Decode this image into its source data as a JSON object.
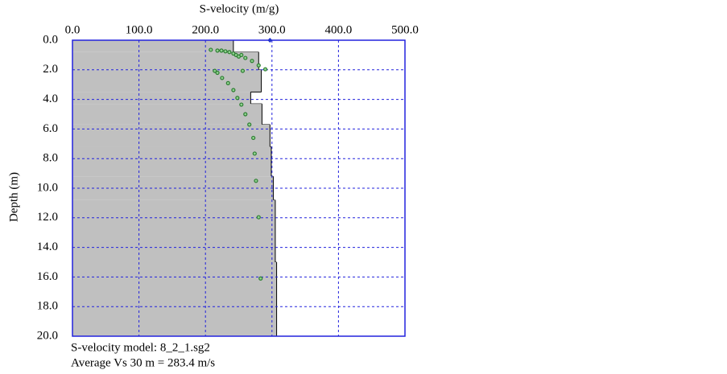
{
  "chart_data": {
    "type": "velocity-profile",
    "title": "S-velocity (m/g)",
    "y_label": "Depth (m)",
    "notes": [
      "S-velocity model: 8_2_1.sg2",
      "Average Vs 30 m = 283.4 m/s"
    ],
    "xlim": [
      0,
      500
    ],
    "xticks": [
      {
        "value": 0,
        "label": "0.0"
      },
      {
        "value": 100,
        "label": "100.0"
      },
      {
        "value": 200,
        "label": "200.0"
      },
      {
        "value": 300,
        "label": "300.0"
      },
      {
        "value": 400,
        "label": "400.0"
      },
      {
        "value": 500,
        "label": "500.0"
      }
    ],
    "ylim": [
      0,
      20
    ],
    "yticks": [
      {
        "value": 0,
        "label": "0.0"
      },
      {
        "value": 2,
        "label": "2.0"
      },
      {
        "value": 4,
        "label": "4.0"
      },
      {
        "value": 6,
        "label": "6.0"
      },
      {
        "value": 8,
        "label": "8.0"
      },
      {
        "value": 10,
        "label": "10.0"
      },
      {
        "value": 12,
        "label": "12.0"
      },
      {
        "value": 14,
        "label": "14.0"
      },
      {
        "value": 16,
        "label": "16.0"
      },
      {
        "value": 18,
        "label": "18.0"
      },
      {
        "value": 20,
        "label": "20.0"
      }
    ],
    "grid": true,
    "layers": {
      "color": "#c0c0c0",
      "top_depth": [
        0,
        0.8,
        2.0,
        3.5,
        4.3,
        5.7,
        7.2,
        9.2,
        10.8,
        15.0
      ],
      "velocity": [
        242,
        280,
        284,
        268,
        285,
        297,
        299,
        302,
        305,
        307
      ]
    },
    "points": {
      "color": "#2e7d32",
      "velocity": [
        208,
        218,
        224,
        230,
        236,
        242,
        246,
        250,
        254,
        260,
        270,
        280,
        290,
        256,
        214,
        218,
        225,
        234,
        242,
        248,
        254,
        260,
        266,
        272,
        274,
        276,
        280,
        283
      ],
      "depth": [
        0.65,
        0.7,
        0.7,
        0.75,
        0.8,
        0.9,
        1.0,
        1.1,
        1.0,
        1.2,
        1.4,
        1.7,
        1.96,
        2.07,
        2.07,
        2.2,
        2.55,
        2.9,
        3.37,
        3.9,
        4.35,
        5.0,
        5.7,
        6.6,
        7.66,
        9.5,
        11.96,
        16.1
      ]
    },
    "marker": {
      "color": "#2233cc",
      "velocity": 297,
      "depth": 0
    }
  }
}
